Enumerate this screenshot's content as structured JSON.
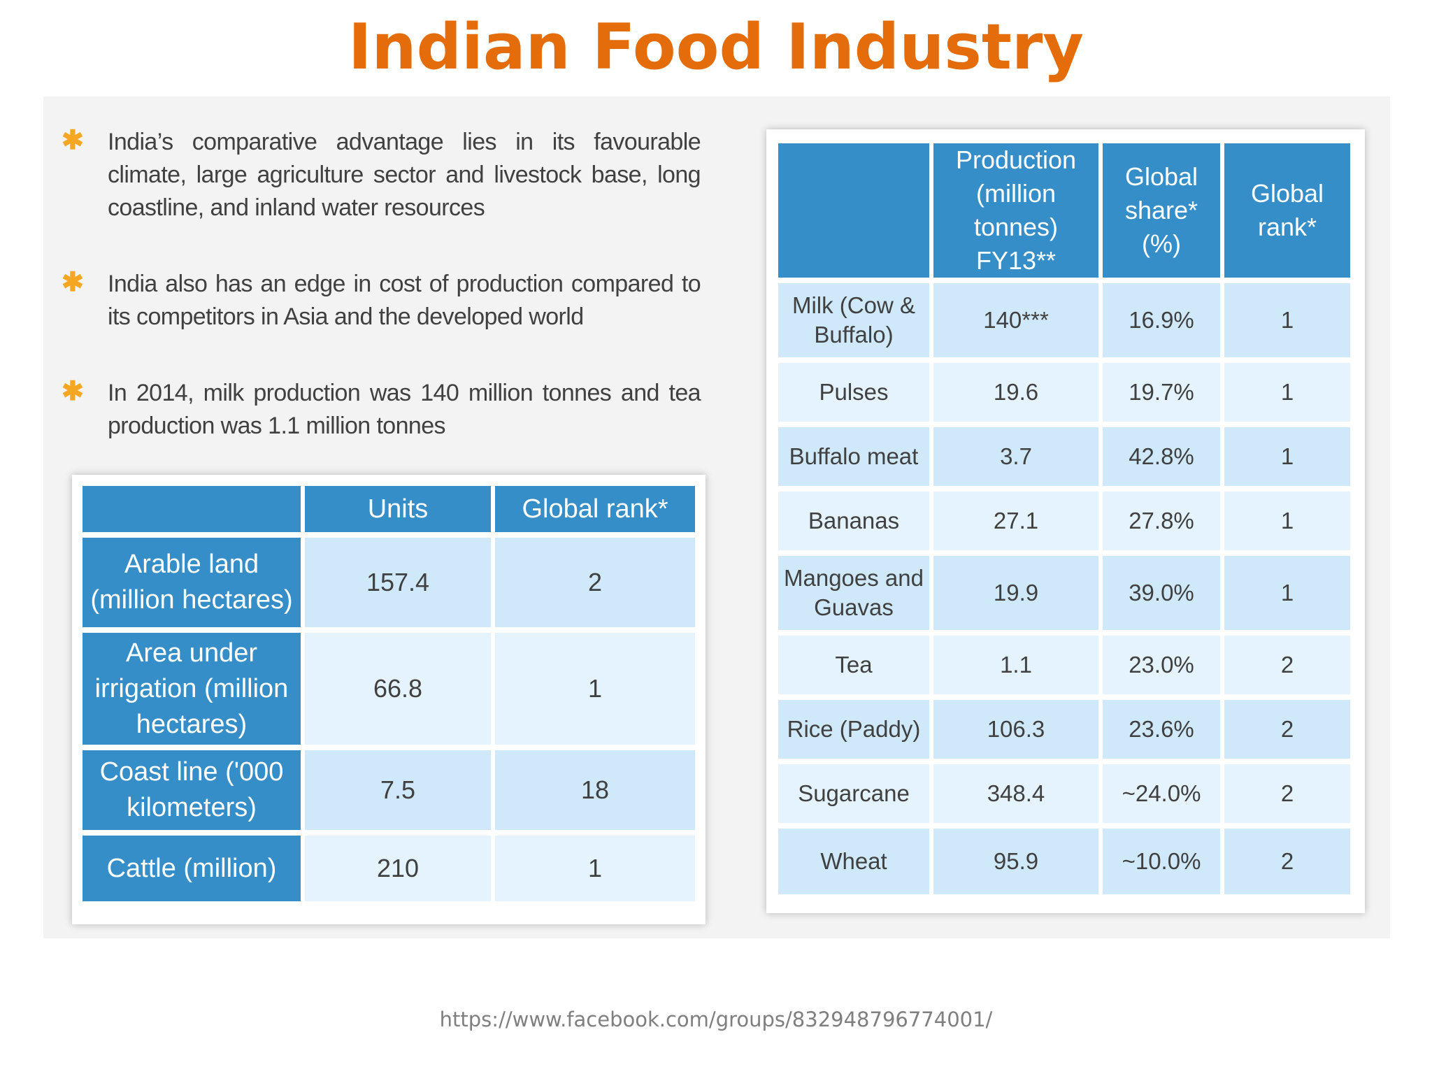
{
  "title": "Indian Food Industry",
  "bullets": [
    "India’s comparative advantage lies in its favourable climate, large agriculture sector and livestock base, long coastline, and inland water resources",
    "India also has an edge in cost of production compared to its competitors in Asia and the developed world",
    "In 2014, milk production was 140 million tonnes and tea production was 1.1 million tonnes"
  ],
  "resources_table": {
    "headers": [
      "",
      "Units",
      "Global rank*"
    ],
    "rows": [
      {
        "label": "Arable land (million hectares)",
        "units": "157.4",
        "rank": "2"
      },
      {
        "label": "Area under irrigation (million hectares)",
        "units": "66.8",
        "rank": "1"
      },
      {
        "label": "Coast line ('000 kilometers)",
        "units": "7.5",
        "rank": "18"
      },
      {
        "label": "Cattle (million)",
        "units": "210",
        "rank": "1"
      }
    ]
  },
  "production_table": {
    "headers": [
      "",
      "Production (million tonnes) FY13**",
      "Global share* (%)",
      "Global rank*"
    ],
    "rows": [
      {
        "item": "Milk (Cow & Buffalo)",
        "production": "140***",
        "share": "16.9%",
        "rank": "1"
      },
      {
        "item": "Pulses",
        "production": "19.6",
        "share": "19.7%",
        "rank": "1"
      },
      {
        "item": "Buffalo meat",
        "production": "3.7",
        "share": "42.8%",
        "rank": "1"
      },
      {
        "item": "Bananas",
        "production": "27.1",
        "share": "27.8%",
        "rank": "1"
      },
      {
        "item": "Mangoes and Guavas",
        "production": "19.9",
        "share": "39.0%",
        "rank": "1"
      },
      {
        "item": "Tea",
        "production": "1.1",
        "share": "23.0%",
        "rank": "2"
      },
      {
        "item": "Rice (Paddy)",
        "production": "106.3",
        "share": "23.6%",
        "rank": "2"
      },
      {
        "item": "Sugarcane",
        "production": "348.4",
        "share": "~24.0%",
        "rank": "2"
      },
      {
        "item": "Wheat",
        "production": "95.9",
        "share": "~10.0%",
        "rank": "2"
      }
    ]
  },
  "footer": "https://www.facebook.com/groups/832948796774001/"
}
